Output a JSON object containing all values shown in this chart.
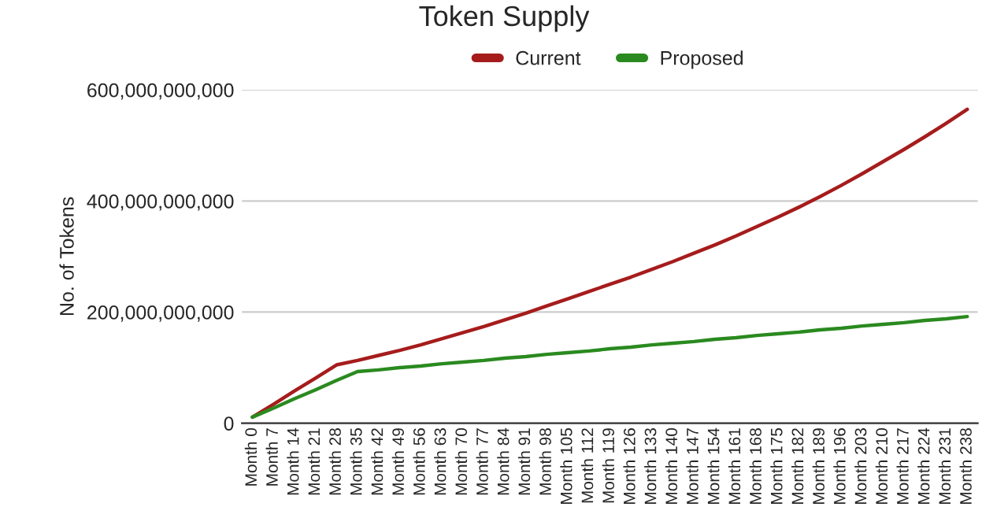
{
  "chart_data": {
    "type": "line",
    "title": "Token Supply",
    "ylabel": "No. of Tokens",
    "categories": [
      "Month 0",
      "Month 7",
      "Month 14",
      "Month 21",
      "Month 28",
      "Month 35",
      "Month 42",
      "Month 49",
      "Month 56",
      "Month 63",
      "Month 70",
      "Month 77",
      "Month 84",
      "Month 91",
      "Month 98",
      "Month 105",
      "Month 112",
      "Month 119",
      "Month 126",
      "Month 133",
      "Month 140",
      "Month 147",
      "Month 154",
      "Month 161",
      "Month 168",
      "Month 175",
      "Month 182",
      "Month 189",
      "Month 196",
      "Month 203",
      "Month 210",
      "Month 217",
      "Month 224",
      "Month 231",
      "Month 238"
    ],
    "series": [
      {
        "name": "Current",
        "color": "#a61c1c",
        "values": [
          11000000000,
          34000000000,
          58000000000,
          81000000000,
          105000000000,
          113000000000,
          122000000000,
          131000000000,
          141000000000,
          152000000000,
          163000000000,
          174000000000,
          186000000000,
          198000000000,
          211000000000,
          224000000000,
          237000000000,
          250000000000,
          263000000000,
          277000000000,
          291000000000,
          306000000000,
          321000000000,
          337000000000,
          354000000000,
          371000000000,
          389000000000,
          408000000000,
          428000000000,
          449000000000,
          471000000000,
          493000000000,
          516000000000,
          540000000000,
          565000000000
        ]
      },
      {
        "name": "Proposed",
        "color": "#2a8a1f",
        "values": [
          11000000000,
          27000000000,
          44000000000,
          60000000000,
          77000000000,
          93000000000,
          96000000000,
          100000000000,
          103000000000,
          107000000000,
          110000000000,
          113000000000,
          117000000000,
          120000000000,
          124000000000,
          127000000000,
          130000000000,
          134000000000,
          137000000000,
          141000000000,
          144000000000,
          147000000000,
          151000000000,
          154000000000,
          158000000000,
          161000000000,
          164000000000,
          168000000000,
          171000000000,
          175000000000,
          178000000000,
          181000000000,
          185000000000,
          188000000000,
          192000000000
        ]
      }
    ],
    "ylim": [
      0,
      600000000000
    ],
    "yticks": [
      {
        "value": 0,
        "label": "0"
      },
      {
        "value": 200000000000,
        "label": "200,000,000,000"
      },
      {
        "value": 400000000000,
        "label": "400,000,000,000"
      },
      {
        "value": 600000000000,
        "label": "600,000,000,000"
      }
    ],
    "grid": "y",
    "legend": "top",
    "marker": "none",
    "line_style": "solid"
  }
}
